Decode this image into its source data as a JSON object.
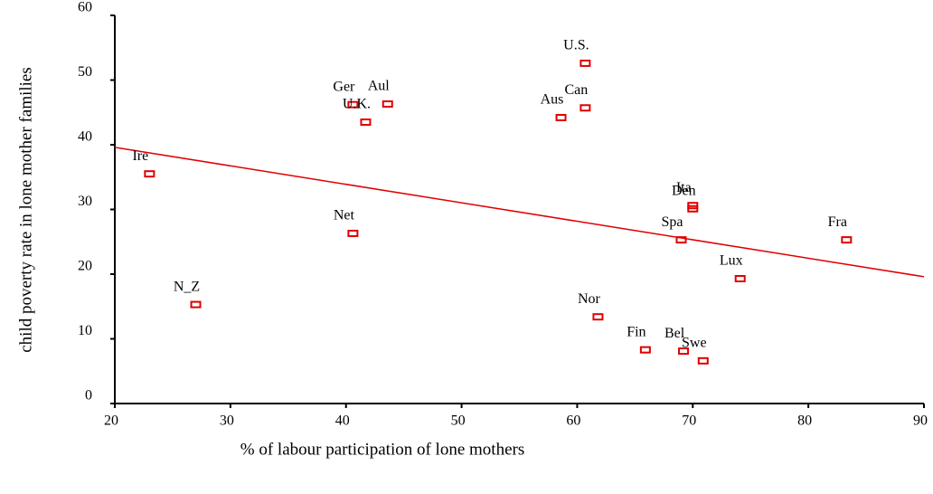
{
  "chart_data": {
    "type": "scatter",
    "xlabel": "% of labour participation of lone mothers",
    "ylabel": "child poverty rate in lone mother families",
    "labels": [
      "Ire",
      "N_Z",
      "Net",
      "Ger",
      "Aul",
      "U.K.",
      "Aus",
      "Can",
      "U.S.",
      "Ita",
      "Den",
      "Spa",
      "Fra",
      "Lux",
      "Nor",
      "Fin",
      "Bel",
      "Swe"
    ],
    "x": [
      23.0,
      27.0,
      40.6,
      40.6,
      43.6,
      41.7,
      58.6,
      60.7,
      60.7,
      70.0,
      70.0,
      69.0,
      83.3,
      74.1,
      61.8,
      65.9,
      69.2,
      70.9
    ],
    "values": [
      35.5,
      15.3,
      26.3,
      46.2,
      46.3,
      43.5,
      44.2,
      45.7,
      52.6,
      30.6,
      30.1,
      25.3,
      25.3,
      19.3,
      13.4,
      8.3,
      8.1,
      6.6
    ],
    "color": "#e00000",
    "trend": {
      "x": [
        20,
        90
      ],
      "values": [
        39.6,
        19.6
      ],
      "color": "#e00000"
    },
    "xlim": [
      20,
      90
    ],
    "xticks": [
      20,
      30,
      40,
      50,
      60,
      70,
      80,
      90
    ],
    "ylim": [
      0,
      60
    ],
    "yticks": [
      0,
      10,
      20,
      30,
      40,
      50,
      60
    ]
  }
}
